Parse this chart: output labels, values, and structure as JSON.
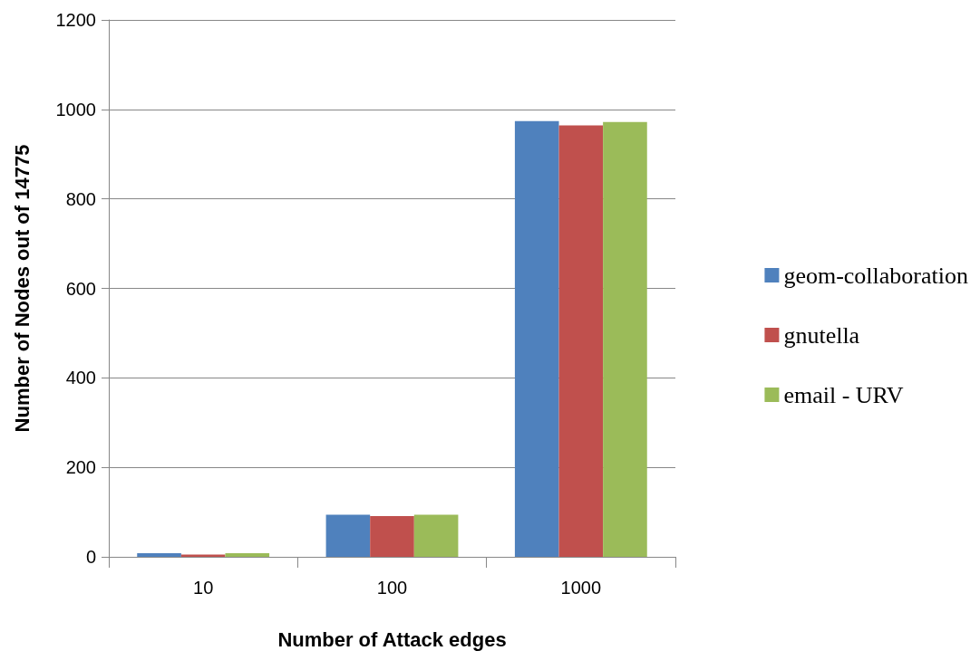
{
  "chart_data": {
    "type": "bar",
    "xlabel": "Number of Attack edges",
    "ylabel": "Number of Nodes out of 14775",
    "categories": [
      "10",
      "100",
      "1000"
    ],
    "series": [
      {
        "name": "geom-collaboration",
        "color": "#4f81bd",
        "values": [
          8,
          94,
          974
        ]
      },
      {
        "name": "gnutella",
        "color": "#c0504d",
        "values": [
          5,
          91,
          964
        ]
      },
      {
        "name": "email - URV",
        "color": "#9bbb59",
        "values": [
          8,
          94,
          972
        ]
      }
    ],
    "ylim": [
      0,
      1200
    ],
    "yticks": [
      0,
      200,
      400,
      600,
      800,
      1000,
      1200
    ],
    "grid": "y",
    "legend": "right"
  }
}
